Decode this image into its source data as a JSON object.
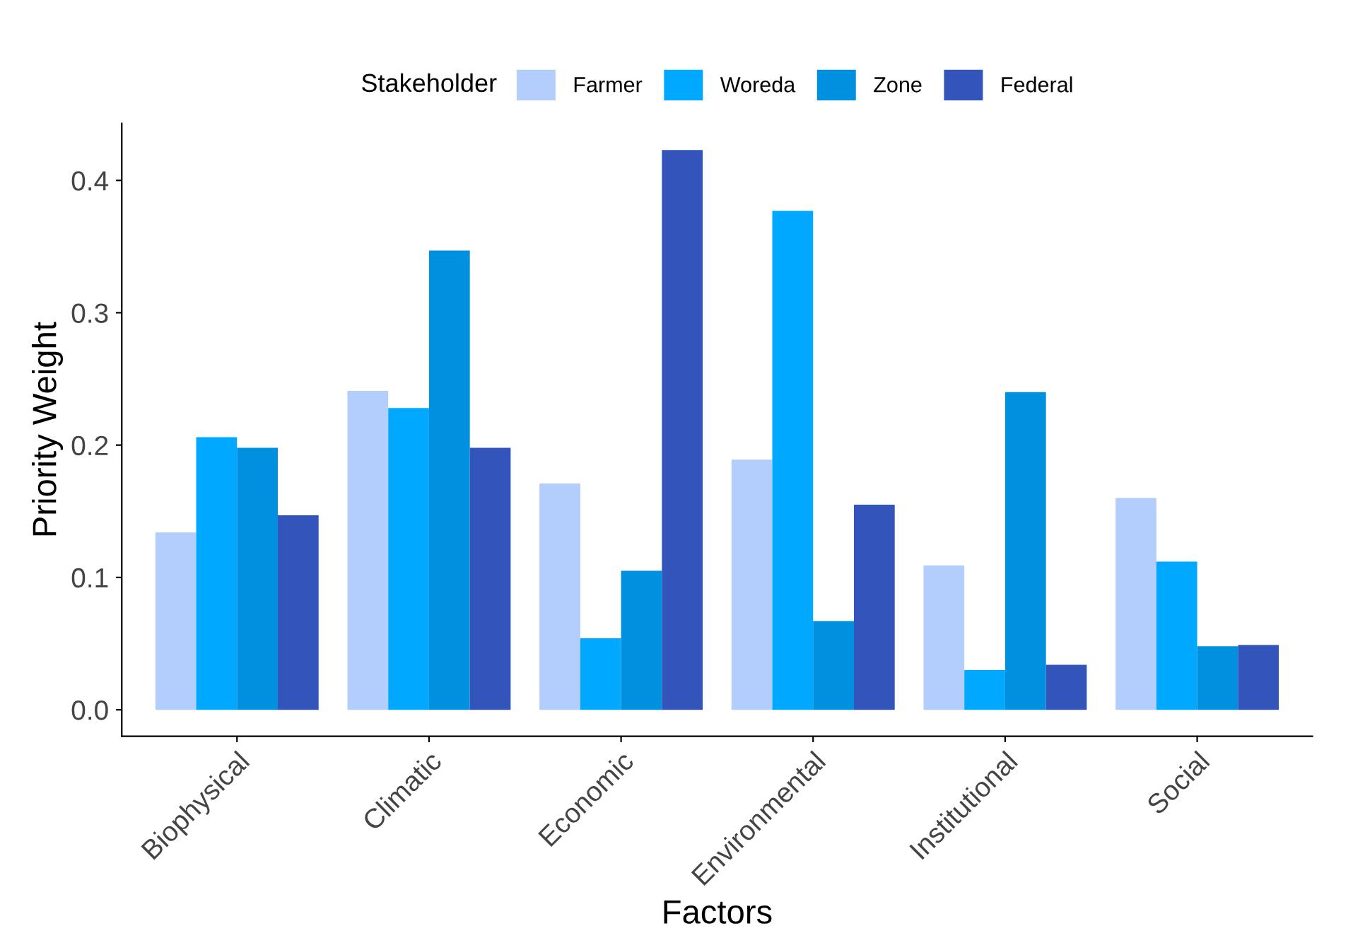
{
  "chart_data": {
    "type": "bar",
    "xlabel": "Factors",
    "ylabel": "Priority Weight",
    "legend_title": "Stakeholder",
    "categories": [
      "Biophysical",
      "Climatic",
      "Economic",
      "Environmental",
      "Institutional",
      "Social"
    ],
    "series": [
      {
        "name": "Farmer",
        "color": "#b3cdfd",
        "values": [
          0.134,
          0.241,
          0.171,
          0.189,
          0.109,
          0.16
        ]
      },
      {
        "name": "Woreda",
        "color": "#00a9ff",
        "values": [
          0.206,
          0.228,
          0.054,
          0.377,
          0.03,
          0.112
        ]
      },
      {
        "name": "Zone",
        "color": "#0090e0",
        "values": [
          0.198,
          0.347,
          0.105,
          0.067,
          0.24,
          0.048
        ]
      },
      {
        "name": "Federal",
        "color": "#3355bb",
        "values": [
          0.147,
          0.198,
          0.423,
          0.155,
          0.034,
          0.049
        ]
      }
    ],
    "ylim": [
      -0.02,
      0.443
    ],
    "yticks": [
      {
        "value": 0,
        "label": "0.0"
      },
      0.1,
      0.2,
      0.3,
      0.4
    ],
    "grid": false,
    "legend": "top"
  }
}
